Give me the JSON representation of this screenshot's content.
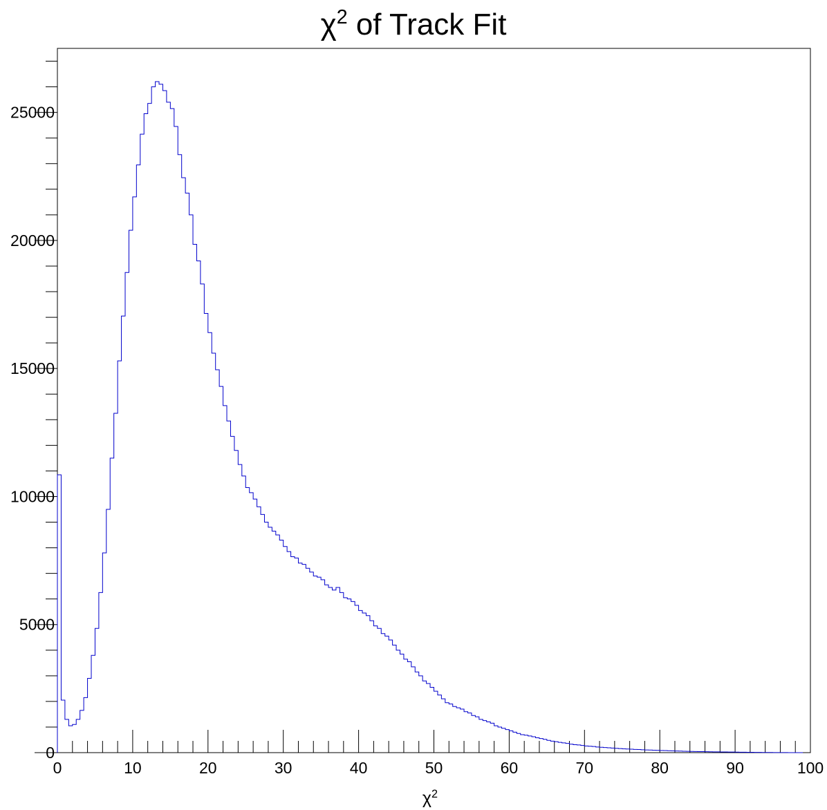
{
  "chart_data": {
    "type": "bar",
    "histogram": true,
    "title": "χ2 of Track Fit",
    "title_base": "χ",
    "title_sup": "2",
    "title_rest": " of Track Fit",
    "xlabel": "χ2",
    "xlabel_base": "χ",
    "xlabel_sup": "2",
    "ylabel": "",
    "xlim": [
      0,
      100
    ],
    "ylim": [
      0,
      27500
    ],
    "bin_start": 0,
    "bin_width": 0.5,
    "x_ticks": [
      "0",
      "10",
      "20",
      "30",
      "40",
      "50",
      "60",
      "70",
      "80",
      "90",
      "100"
    ],
    "y_ticks": [
      "0",
      "5000",
      "10000",
      "15000",
      "20000",
      "25000"
    ],
    "line_color": "#0000cc",
    "values": [
      10850,
      2050,
      1300,
      1050,
      1100,
      1300,
      1650,
      2150,
      2900,
      3800,
      4850,
      6250,
      7800,
      9500,
      11500,
      13250,
      15300,
      17050,
      18750,
      20400,
      21700,
      22950,
      24150,
      24950,
      25350,
      26000,
      26200,
      26100,
      25850,
      25400,
      25150,
      24450,
      23350,
      22450,
      21850,
      21000,
      19850,
      19200,
      18300,
      17150,
      16400,
      15600,
      14950,
      14300,
      13550,
      12950,
      12350,
      11800,
      11250,
      10800,
      10350,
      10150,
      9900,
      9600,
      9300,
      9000,
      8800,
      8650,
      8500,
      8300,
      8050,
      7850,
      7650,
      7600,
      7400,
      7350,
      7200,
      7050,
      6900,
      6850,
      6750,
      6550,
      6450,
      6350,
      6450,
      6250,
      6050,
      6000,
      5900,
      5750,
      5550,
      5450,
      5350,
      5150,
      4950,
      4850,
      4650,
      4550,
      4400,
      4200,
      4000,
      3850,
      3650,
      3550,
      3350,
      3150,
      3000,
      2800,
      2700,
      2550,
      2400,
      2250,
      2100,
      1950,
      1900,
      1800,
      1750,
      1700,
      1600,
      1550,
      1450,
      1400,
      1300,
      1250,
      1200,
      1150,
      1050,
      1000,
      950,
      900,
      850,
      800,
      750,
      700,
      680,
      650,
      620,
      580,
      550,
      520,
      480,
      450,
      430,
      400,
      380,
      360,
      330,
      310,
      300,
      280,
      260,
      250,
      240,
      220,
      210,
      200,
      190,
      180,
      170,
      160,
      150,
      140,
      135,
      125,
      120,
      110,
      105,
      100,
      95,
      90,
      85,
      80,
      75,
      70,
      65,
      60,
      55,
      50,
      48,
      45,
      42,
      40,
      37,
      35,
      32,
      30,
      28,
      26,
      24,
      22,
      20,
      18,
      16,
      14,
      12,
      10,
      9,
      8,
      7,
      6,
      5,
      4,
      3,
      2,
      1,
      0,
      0,
      0
    ]
  }
}
